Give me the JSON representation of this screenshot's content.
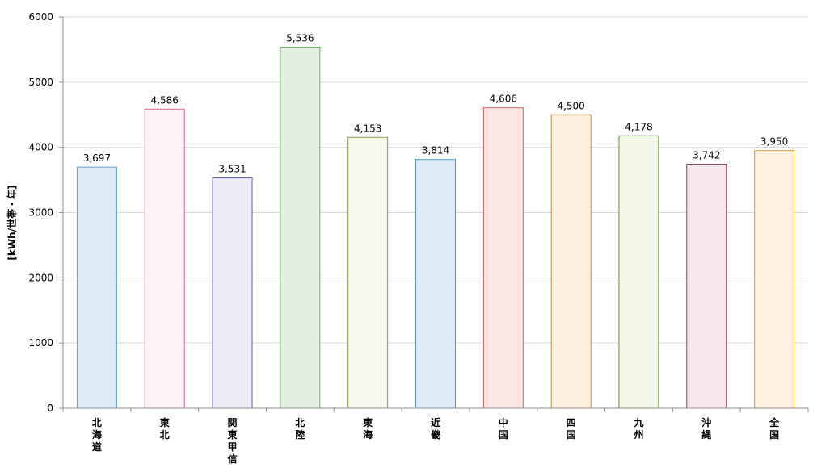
{
  "chart_data": {
    "type": "bar",
    "categories": [
      "北海道",
      "東北",
      "関東甲信",
      "北陸",
      "東海",
      "近畿",
      "中国",
      "四国",
      "九州",
      "沖縄",
      "全国"
    ],
    "values": [
      3697,
      4586,
      3531,
      5536,
      4153,
      3814,
      4606,
      4500,
      4178,
      3742,
      3950
    ],
    "value_labels": [
      "3,697",
      "4,586",
      "3,531",
      "5,536",
      "4,153",
      "3,814",
      "4,606",
      "4,500",
      "4,178",
      "3,742",
      "3,950"
    ],
    "ylabel": "[kWh/世帯・年]",
    "ylim": [
      0,
      6000
    ],
    "yticks": [
      0,
      1000,
      2000,
      3000,
      4000,
      5000,
      6000
    ],
    "ytick_labels": [
      "0",
      "1000",
      "2000",
      "3000",
      "4000",
      "5000",
      "6000"
    ],
    "grid": true,
    "bar_colors": [
      {
        "fill": "#deebf7",
        "stroke": "#5fa2d0"
      },
      {
        "fill": "#fdf0f6",
        "stroke": "#e0679e"
      },
      {
        "fill": "#eeeefb",
        "stroke": "#5a5bb5"
      },
      {
        "fill": "#e2f0df",
        "stroke": "#5fae53"
      },
      {
        "fill": "#f5f8ea",
        "stroke": "#8a9a52"
      },
      {
        "fill": "#dcebf7",
        "stroke": "#4a9ccf"
      },
      {
        "fill": "#fbe4e4",
        "stroke": "#d95c5c"
      },
      {
        "fill": "#fcefdf",
        "stroke": "#c9883e"
      },
      {
        "fill": "#f3f7e8",
        "stroke": "#5e8a3a"
      },
      {
        "fill": "#f8e7ec",
        "stroke": "#8a3a5a"
      },
      {
        "fill": "#fcf0df",
        "stroke": "#d79a35"
      }
    ]
  }
}
